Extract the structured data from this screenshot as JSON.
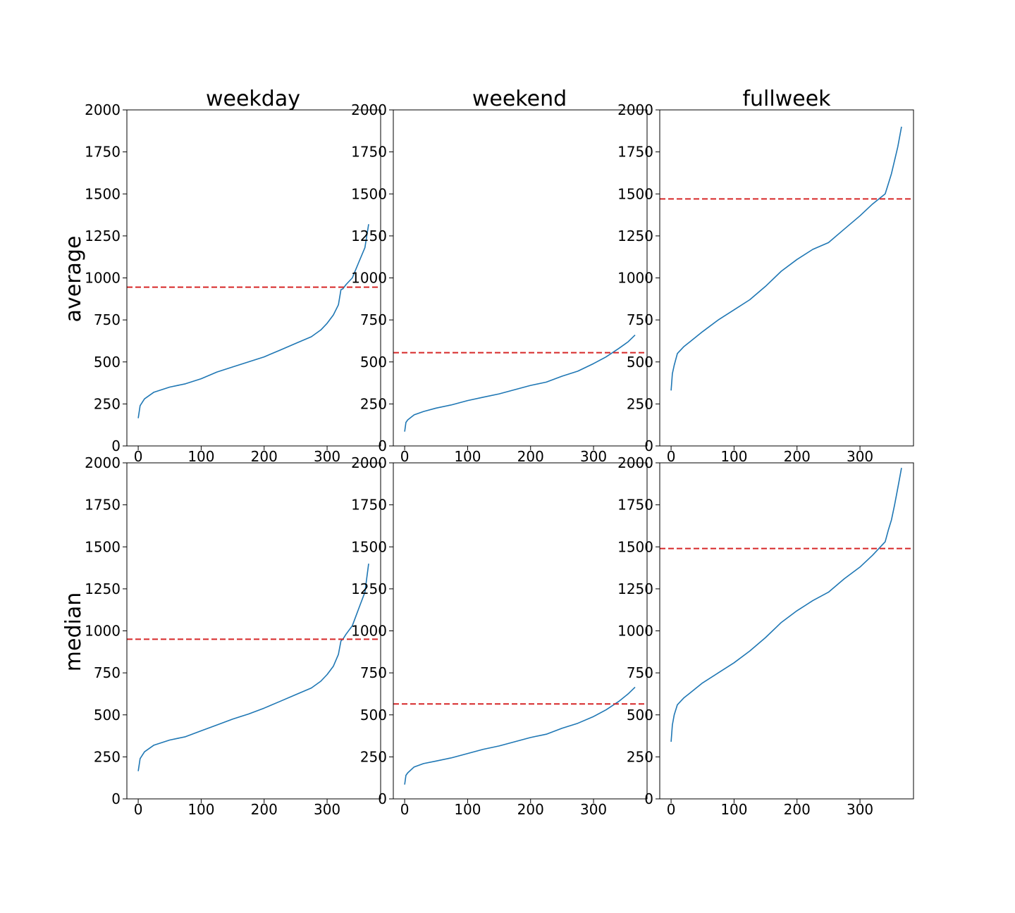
{
  "figure": {
    "column_titles": [
      "weekday",
      "weekend",
      "fullweek"
    ],
    "row_labels": [
      "average",
      "median"
    ]
  },
  "colors": {
    "series_line": "#1f77b4",
    "threshold_line": "#d62728",
    "axes": "#000000",
    "background": "#ffffff"
  },
  "chart_data": [
    {
      "type": "line",
      "row": "average",
      "column": "weekday",
      "x": [
        0,
        3,
        10,
        25,
        50,
        75,
        100,
        125,
        150,
        175,
        200,
        225,
        250,
        275,
        290,
        300,
        310,
        318,
        322,
        325,
        330,
        340,
        350,
        360,
        366
      ],
      "series": [
        {
          "values": [
            165,
            240,
            280,
            320,
            350,
            370,
            400,
            440,
            470,
            500,
            530,
            570,
            610,
            650,
            690,
            730,
            780,
            840,
            930,
            935,
            960,
            1000,
            1090,
            1180,
            1320
          ]
        }
      ],
      "threshold": 945,
      "xlim": [
        -18,
        385
      ],
      "ylim": [
        0,
        2000
      ],
      "xticks": [
        0,
        100,
        200,
        300
      ],
      "yticks": [
        0,
        250,
        500,
        750,
        1000,
        1250,
        1500,
        1750,
        2000
      ]
    },
    {
      "type": "line",
      "row": "average",
      "column": "weekend",
      "x": [
        0,
        2,
        5,
        15,
        30,
        50,
        75,
        100,
        125,
        150,
        175,
        200,
        225,
        250,
        275,
        300,
        320,
        340,
        355,
        366
      ],
      "series": [
        {
          "values": [
            85,
            140,
            155,
            185,
            205,
            225,
            245,
            270,
            290,
            310,
            335,
            360,
            380,
            415,
            445,
            490,
            530,
            580,
            620,
            660
          ]
        }
      ],
      "threshold": 555,
      "xlim": [
        -18,
        385
      ],
      "ylim": [
        0,
        2000
      ],
      "xticks": [
        0,
        100,
        200,
        300
      ],
      "yticks": [
        0,
        250,
        500,
        750,
        1000,
        1250,
        1500,
        1750,
        2000
      ]
    },
    {
      "type": "line",
      "row": "average",
      "column": "fullweek",
      "x": [
        0,
        2,
        5,
        10,
        20,
        30,
        50,
        75,
        100,
        125,
        150,
        175,
        200,
        225,
        250,
        275,
        300,
        320,
        330,
        340,
        345,
        350,
        355,
        360,
        366
      ],
      "series": [
        {
          "values": [
            330,
            430,
            480,
            550,
            590,
            620,
            680,
            750,
            810,
            870,
            950,
            1040,
            1110,
            1170,
            1210,
            1290,
            1370,
            1440,
            1470,
            1500,
            1560,
            1620,
            1700,
            1780,
            1900
          ]
        }
      ],
      "threshold": 1470,
      "xlim": [
        -18,
        385
      ],
      "ylim": [
        0,
        2000
      ],
      "xticks": [
        0,
        100,
        200,
        300
      ],
      "yticks": [
        0,
        250,
        500,
        750,
        1000,
        1250,
        1500,
        1750,
        2000
      ]
    },
    {
      "type": "line",
      "row": "median",
      "column": "weekday",
      "x": [
        0,
        3,
        10,
        25,
        50,
        75,
        100,
        125,
        150,
        175,
        200,
        225,
        250,
        275,
        290,
        300,
        310,
        318,
        322,
        325,
        330,
        340,
        350,
        360,
        366
      ],
      "series": [
        {
          "values": [
            165,
            240,
            280,
            320,
            350,
            370,
            405,
            440,
            475,
            505,
            540,
            580,
            620,
            660,
            700,
            740,
            790,
            860,
            940,
            950,
            980,
            1030,
            1130,
            1230,
            1400
          ]
        }
      ],
      "threshold": 950,
      "xlim": [
        -18,
        385
      ],
      "ylim": [
        0,
        2000
      ],
      "xticks": [
        0,
        100,
        200,
        300
      ],
      "yticks": [
        0,
        250,
        500,
        750,
        1000,
        1250,
        1500,
        1750,
        2000
      ]
    },
    {
      "type": "line",
      "row": "median",
      "column": "weekend",
      "x": [
        0,
        2,
        5,
        15,
        30,
        50,
        75,
        100,
        125,
        150,
        175,
        200,
        225,
        250,
        275,
        300,
        320,
        340,
        355,
        366
      ],
      "series": [
        {
          "values": [
            85,
            140,
            155,
            190,
            210,
            225,
            245,
            270,
            295,
            315,
            340,
            365,
            385,
            420,
            450,
            490,
            530,
            580,
            625,
            665
          ]
        }
      ],
      "threshold": 565,
      "xlim": [
        -18,
        385
      ],
      "ylim": [
        0,
        2000
      ],
      "xticks": [
        0,
        100,
        200,
        300
      ],
      "yticks": [
        0,
        250,
        500,
        750,
        1000,
        1250,
        1500,
        1750,
        2000
      ]
    },
    {
      "type": "line",
      "row": "median",
      "column": "fullweek",
      "x": [
        0,
        2,
        5,
        10,
        20,
        30,
        50,
        75,
        100,
        125,
        150,
        175,
        200,
        225,
        250,
        275,
        300,
        320,
        330,
        340,
        345,
        350,
        355,
        360,
        366
      ],
      "series": [
        {
          "values": [
            340,
            440,
            500,
            560,
            600,
            630,
            690,
            750,
            810,
            880,
            960,
            1050,
            1120,
            1180,
            1230,
            1310,
            1380,
            1450,
            1490,
            1530,
            1600,
            1660,
            1750,
            1850,
            1970
          ]
        }
      ],
      "threshold": 1490,
      "xlim": [
        -18,
        385
      ],
      "ylim": [
        0,
        2000
      ],
      "xticks": [
        0,
        100,
        200,
        300
      ],
      "yticks": [
        0,
        250,
        500,
        750,
        1000,
        1250,
        1500,
        1750,
        2000
      ]
    }
  ]
}
